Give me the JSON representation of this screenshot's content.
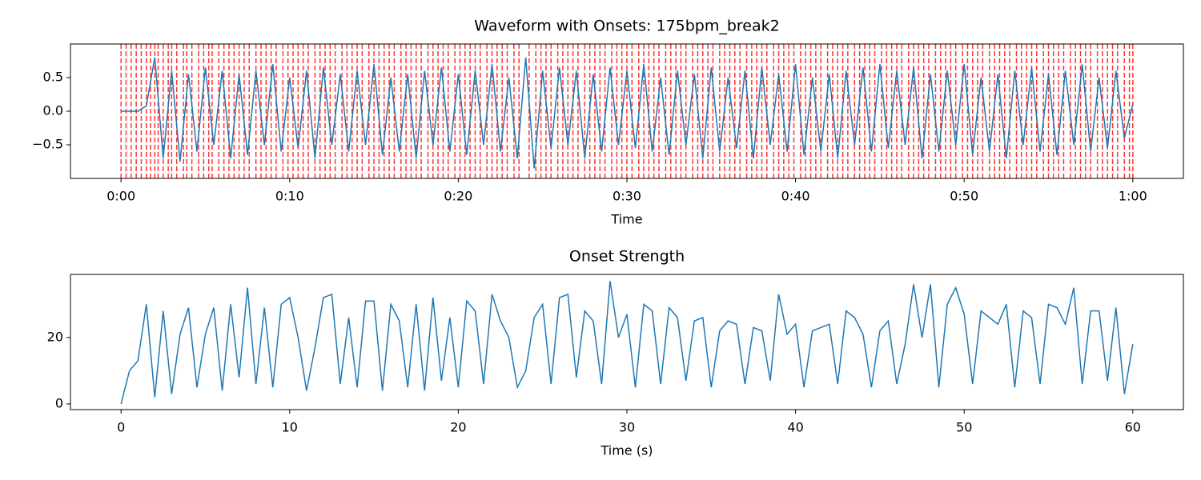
{
  "chart_data": [
    {
      "type": "line",
      "title": "Waveform with Onsets: 175bpm_break2",
      "xlabel": "Time",
      "x": [
        0,
        0.5,
        1,
        1.5,
        2,
        2.5,
        3,
        3.5,
        4,
        4.5,
        5,
        5.5,
        6,
        6.5,
        7,
        7.5,
        8,
        8.5,
        9,
        9.5,
        10,
        10.5,
        11,
        11.5,
        12,
        12.5,
        13,
        13.5,
        14,
        14.5,
        15,
        15.5,
        16,
        16.5,
        17,
        17.5,
        18,
        18.5,
        19,
        19.5,
        20,
        20.5,
        21,
        21.5,
        22,
        22.5,
        23,
        23.5,
        24,
        24.5,
        25,
        25.5,
        26,
        26.5,
        27,
        27.5,
        28,
        28.5,
        29,
        29.5,
        30,
        30.5,
        31,
        31.5,
        32,
        32.5,
        33,
        33.5,
        34,
        34.5,
        35,
        35.5,
        36,
        36.5,
        37,
        37.5,
        38,
        38.5,
        39,
        39.5,
        40,
        40.5,
        41,
        41.5,
        42,
        42.5,
        43,
        43.5,
        44,
        44.5,
        45,
        45.5,
        46,
        46.5,
        47,
        47.5,
        48,
        48.5,
        49,
        49.5,
        50,
        50.5,
        51,
        51.5,
        52,
        52.5,
        53,
        53.5,
        54,
        54.5,
        55,
        55.5,
        56,
        56.5,
        57,
        57.5,
        58,
        58.5,
        59,
        59.5,
        60
      ],
      "values": [
        0,
        0,
        0,
        0.08,
        0.8,
        -0.7,
        0.6,
        -0.75,
        0.55,
        -0.6,
        0.65,
        -0.5,
        0.6,
        -0.7,
        0.55,
        -0.65,
        0.6,
        -0.5,
        0.7,
        -0.6,
        0.5,
        -0.55,
        0.6,
        -0.7,
        0.65,
        -0.5,
        0.55,
        -0.6,
        0.6,
        -0.5,
        0.7,
        -0.65,
        0.5,
        -0.6,
        0.55,
        -0.7,
        0.6,
        -0.5,
        0.65,
        -0.6,
        0.55,
        -0.65,
        0.6,
        -0.5,
        0.7,
        -0.6,
        0.5,
        -0.7,
        0.8,
        -0.85,
        0.6,
        -0.55,
        0.65,
        -0.5,
        0.6,
        -0.7,
        0.55,
        -0.6,
        0.65,
        -0.5,
        0.6,
        -0.55,
        0.7,
        -0.6,
        0.5,
        -0.65,
        0.6,
        -0.5,
        0.55,
        -0.7,
        0.65,
        -0.6,
        0.5,
        -0.55,
        0.6,
        -0.7,
        0.65,
        -0.5,
        0.55,
        -0.6,
        0.7,
        -0.65,
        0.5,
        -0.6,
        0.55,
        -0.7,
        0.6,
        -0.5,
        0.65,
        -0.6,
        0.7,
        -0.55,
        0.6,
        -0.5,
        0.65,
        -0.7,
        0.55,
        -0.6,
        0.6,
        -0.5,
        0.7,
        -0.65,
        0.5,
        -0.6,
        0.55,
        -0.7,
        0.6,
        -0.5,
        0.65,
        -0.6,
        0.55,
        -0.65,
        0.6,
        -0.5,
        0.7,
        -0.6,
        0.5,
        -0.55,
        0.6,
        -0.4,
        0.1
      ],
      "color": "#1f77b4",
      "onsets": [
        0,
        0.3,
        0.6,
        0.9,
        1.2,
        1.5,
        1.75,
        2.0,
        2.2,
        2.5,
        2.8,
        3.0,
        3.3,
        3.7,
        3.9,
        4.2,
        4.6,
        4.9,
        5.2,
        5.4,
        5.8,
        6.1,
        6.4,
        6.7,
        7.0,
        7.3,
        7.6,
        8.0,
        8.3,
        8.6,
        8.9,
        9.2,
        9.6,
        9.9,
        10.2,
        10.5,
        10.8,
        11.1,
        11.5,
        11.8,
        12.1,
        12.4,
        12.7,
        13.1,
        13.4,
        13.7,
        14.0,
        14.3,
        14.7,
        15.0,
        15.3,
        15.6,
        15.9,
        16.2,
        16.6,
        16.9,
        17.2,
        17.5,
        17.8,
        18.2,
        18.5,
        18.8,
        19.1,
        19.4,
        19.8,
        20.1,
        20.4,
        20.7,
        21.0,
        21.3,
        21.7,
        22.0,
        22.3,
        22.6,
        22.9,
        23.3,
        23.6,
        24.2,
        24.6,
        24.9,
        25.2,
        25.5,
        25.9,
        26.2,
        26.5,
        26.8,
        27.1,
        27.5,
        27.8,
        28.1,
        28.4,
        28.7,
        29.1,
        29.4,
        29.7,
        30.0,
        30.3,
        30.7,
        31.0,
        31.3,
        31.6,
        31.9,
        32.3,
        32.6,
        32.9,
        33.2,
        33.5,
        33.9,
        34.2,
        34.5,
        34.8,
        35.1,
        35.5,
        35.8,
        36.1,
        36.4,
        36.7,
        37.1,
        37.4,
        37.7,
        38.0,
        38.3,
        38.7,
        39.0,
        39.3,
        39.6,
        39.9,
        40.3,
        40.6,
        40.9,
        41.2,
        41.5,
        41.9,
        42.2,
        42.5,
        42.8,
        43.1,
        43.5,
        43.8,
        44.1,
        44.4,
        44.7,
        45.1,
        45.4,
        45.7,
        46.0,
        46.3,
        46.7,
        47.0,
        47.3,
        47.6,
        47.9,
        48.3,
        48.6,
        48.9,
        49.2,
        49.5,
        49.9,
        50.2,
        50.5,
        50.8,
        51.1,
        51.5,
        51.8,
        52.1,
        52.4,
        52.7,
        53.1,
        53.4,
        53.7,
        54.0,
        54.3,
        54.7,
        55.0,
        55.3,
        55.6,
        55.9,
        56.3,
        56.6,
        56.9,
        57.2,
        57.5,
        57.9,
        58.2,
        58.5,
        58.8,
        59.1,
        59.5,
        59.8,
        60.0
      ],
      "onset_color": "red",
      "onset_style": "dashed",
      "xlim": [
        -3,
        63
      ],
      "ylim": [
        -1,
        1
      ],
      "xticks": [
        {
          "value": 0,
          "label": "0:00"
        },
        {
          "value": 10,
          "label": "0:10"
        },
        {
          "value": 20,
          "label": "0:20"
        },
        {
          "value": 30,
          "label": "0:30"
        },
        {
          "value": 40,
          "label": "0:40"
        },
        {
          "value": 50,
          "label": "0:50"
        },
        {
          "value": 60,
          "label": "1:00"
        }
      ],
      "yticks": [
        {
          "value": -0.5,
          "label": "−0.5"
        },
        {
          "value": 0,
          "label": "0.0"
        },
        0.5
      ],
      "grid": false
    },
    {
      "type": "line",
      "title": "Onset Strength",
      "xlabel": "Time (s)",
      "x": [
        0,
        0.5,
        1,
        1.5,
        2,
        2.5,
        3,
        3.5,
        4,
        4.5,
        5,
        5.5,
        6,
        6.5,
        7,
        7.5,
        8,
        8.5,
        9,
        9.5,
        10,
        10.5,
        11,
        11.5,
        12,
        12.5,
        13,
        13.5,
        14,
        14.5,
        15,
        15.5,
        16,
        16.5,
        17,
        17.5,
        18,
        18.5,
        19,
        19.5,
        20,
        20.5,
        21,
        21.5,
        22,
        22.5,
        23,
        23.5,
        24,
        24.5,
        25,
        25.5,
        26,
        26.5,
        27,
        27.5,
        28,
        28.5,
        29,
        29.5,
        30,
        30.5,
        31,
        31.5,
        32,
        32.5,
        33,
        33.5,
        34,
        34.5,
        35,
        35.5,
        36,
        36.5,
        37,
        37.5,
        38,
        38.5,
        39,
        39.5,
        40,
        40.5,
        41,
        41.5,
        42,
        42.5,
        43,
        43.5,
        44,
        44.5,
        45,
        45.5,
        46,
        46.5,
        47,
        47.5,
        48,
        48.5,
        49,
        49.5,
        50,
        50.5,
        51,
        51.5,
        52,
        52.5,
        53,
        53.5,
        54,
        54.5,
        55,
        55.5,
        56,
        56.5,
        57,
        57.5,
        58,
        58.5,
        59,
        59.5,
        60
      ],
      "values": [
        0,
        10,
        13,
        30,
        2,
        28,
        3,
        21,
        29,
        5,
        21,
        29,
        4,
        30,
        8,
        35,
        6,
        29,
        5,
        30,
        32,
        20,
        4,
        17,
        32,
        33,
        6,
        26,
        5,
        31,
        31,
        4,
        30,
        25,
        5,
        30,
        4,
        32,
        7,
        26,
        5,
        31,
        28,
        6,
        33,
        25,
        20,
        5,
        10,
        26,
        30,
        6,
        32,
        33,
        8,
        28,
        25,
        6,
        37,
        20,
        27,
        5,
        30,
        28,
        6,
        29,
        26,
        7,
        25,
        26,
        5,
        22,
        25,
        24,
        6,
        23,
        22,
        7,
        33,
        21,
        24,
        5,
        22,
        23,
        24,
        6,
        28,
        26,
        21,
        5,
        22,
        25,
        6,
        18,
        36,
        20,
        36,
        5,
        30,
        35,
        27,
        6,
        28,
        26,
        24,
        30,
        5,
        28,
        26,
        6,
        30,
        29,
        24,
        35,
        6,
        28,
        28,
        7,
        29,
        3,
        18
      ],
      "color": "#1f77b4",
      "xlim": [
        -3,
        63
      ],
      "ylim": [
        -1.7,
        39
      ],
      "xticks": [
        0,
        10,
        20,
        30,
        40,
        50,
        60
      ],
      "yticks": [
        0,
        20
      ],
      "grid": false
    }
  ]
}
